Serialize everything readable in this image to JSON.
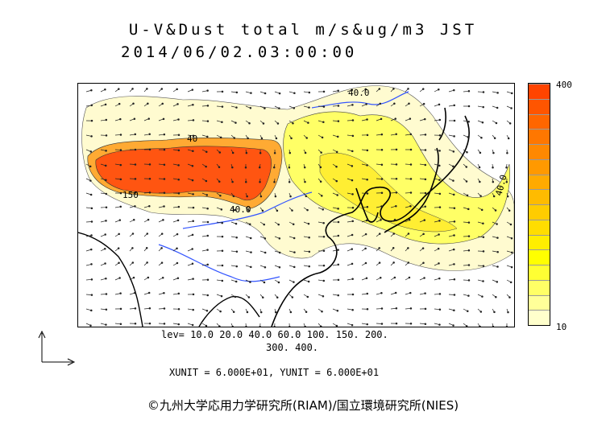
{
  "header": {
    "title_line1": "U-V&Dust total m/s&ug/m3 JST",
    "title_line2": "2014/06/02.03:00:00"
  },
  "map": {
    "contour_labels": [
      "40.0",
      "40",
      "150",
      "40.0",
      "40.0"
    ]
  },
  "colorbar": {
    "max_label": "400",
    "min_label": "10",
    "colors": [
      "#ffffcc",
      "#ffff99",
      "#ffff66",
      "#ffff33",
      "#ffff00",
      "#ffee00",
      "#ffdd00",
      "#ffcc00",
      "#ffbb00",
      "#ffaa00",
      "#ff9900",
      "#ff8800",
      "#ff7700",
      "#ff6600",
      "#ff5500",
      "#ff4400"
    ]
  },
  "footer": {
    "levels_line1": "lev= 10.0 20.0 40.0 60.0 100. 150. 200.",
    "levels_line2": "300. 400.",
    "units": "XUNIT = 6.000E+01, YUNIT = 6.000E+01",
    "copyright": "©九州大学応用力学研究所(RIAM)/国立環境研究所(NIES)"
  }
}
